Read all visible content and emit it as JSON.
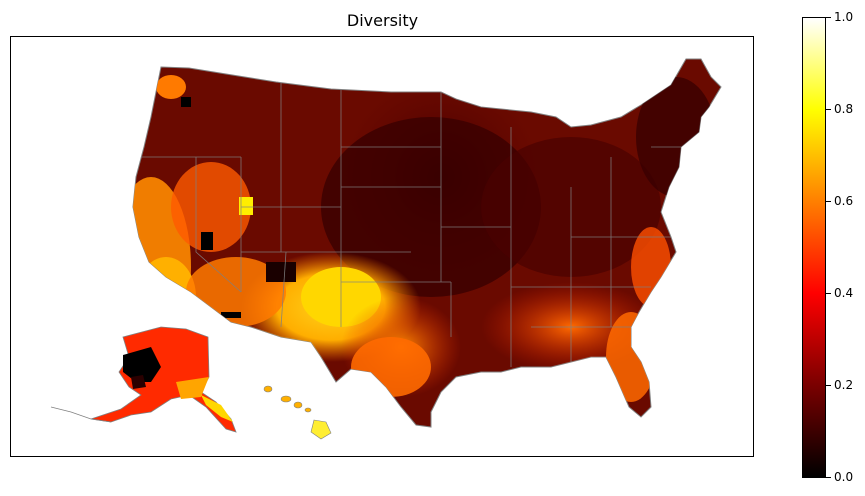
{
  "title": "Diversity",
  "colorbar": {
    "colormap": "hot",
    "min": 0.0,
    "max": 1.0,
    "ticks": [
      "0.0",
      "0.2",
      "0.4",
      "0.6",
      "0.8",
      "1.0"
    ],
    "stops": [
      "#000000",
      "#7a0000",
      "#ff0000",
      "#ff7f00",
      "#ffff00",
      "#ffffff"
    ]
  },
  "map": {
    "regions": [
      "contiguous-us",
      "alaska",
      "hawaii"
    ],
    "boundary_color": "#808080"
  }
}
